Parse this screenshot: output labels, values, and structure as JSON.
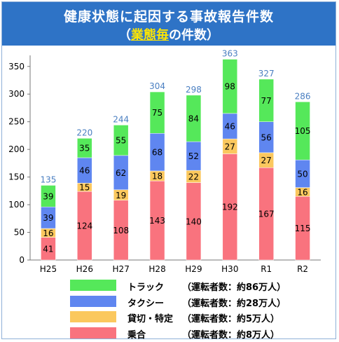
{
  "header": {
    "title_line1": "健康状態に起因する事故報告件数",
    "title_line2_open": "（",
    "title_line2_em": "業態毎",
    "title_line2_rest": "の件数）"
  },
  "legend": [
    {
      "label": "トラック",
      "note": "（運転者数：約86万人）",
      "color": "#55e85a"
    },
    {
      "label": "タクシー",
      "note": "（運転者数：約28万人）",
      "color": "#5f86f0"
    },
    {
      "label": "貸切・特定",
      "note": "（運転者数：約5万人）",
      "color": "#fbc85e"
    },
    {
      "label": "乗合",
      "note": "（運転者数：約8万人）",
      "color": "#f9737e"
    }
  ],
  "chart_data": {
    "type": "bar",
    "stacked": true,
    "categories": [
      "H25",
      "H26",
      "H27",
      "H28",
      "H29",
      "H30",
      "R1",
      "R2"
    ],
    "series": [
      {
        "name": "乗合",
        "color": "#f9737e",
        "values": [
          41,
          124,
          108,
          143,
          140,
          192,
          167,
          115
        ]
      },
      {
        "name": "貸切・特定",
        "color": "#fbc85e",
        "values": [
          16,
          15,
          19,
          18,
          22,
          27,
          27,
          16
        ]
      },
      {
        "name": "タクシー",
        "color": "#5f86f0",
        "values": [
          39,
          46,
          62,
          68,
          52,
          46,
          56,
          50
        ]
      },
      {
        "name": "トラック",
        "color": "#55e85a",
        "values": [
          39,
          35,
          55,
          75,
          84,
          98,
          77,
          105
        ]
      }
    ],
    "totals": [
      135,
      220,
      244,
      304,
      298,
      363,
      327,
      286
    ],
    "ylim": [
      0,
      370
    ],
    "yticks": [
      0,
      50,
      100,
      150,
      200,
      250,
      300,
      350
    ],
    "grid": false,
    "legend_position": "bottom"
  }
}
